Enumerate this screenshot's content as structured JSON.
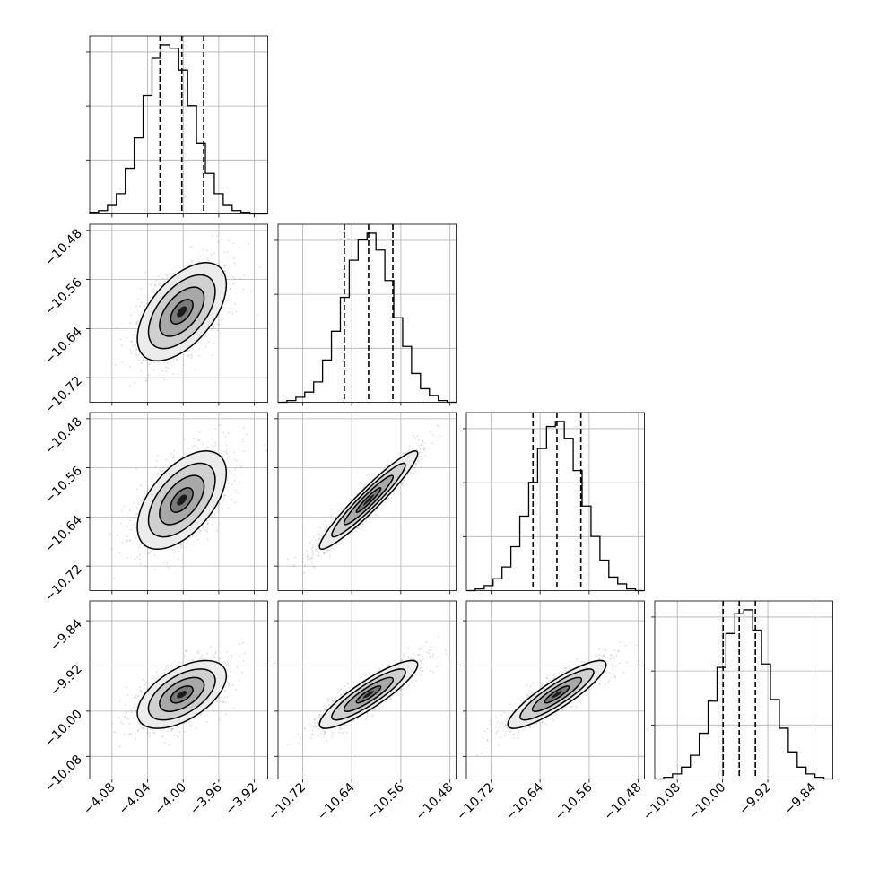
{
  "chart_data": {
    "type": "corner",
    "grid": true,
    "title": "",
    "parameters": [
      {
        "name": "",
        "range": [
          -4.105,
          -3.905
        ],
        "ticks": [
          "−4.08",
          "−4.04",
          "−4.00",
          "−3.96",
          "−3.92"
        ],
        "tick_values": [
          -4.08,
          -4.04,
          -4.0,
          -3.96,
          -3.92
        ],
        "quantiles": [
          -4.026,
          -4.0015,
          -3.977
        ]
      },
      {
        "name": "",
        "range": [
          -10.76,
          -10.47
        ],
        "ticks": [
          "−10.72",
          "−10.64",
          "−10.56",
          "−10.48"
        ],
        "tick_values": [
          -10.72,
          -10.64,
          -10.56,
          -10.48
        ],
        "quantiles": [
          -10.652,
          -10.6125,
          -10.573
        ]
      },
      {
        "name": "",
        "range": [
          -10.76,
          -10.47
        ],
        "ticks": [
          "−10.72",
          "−10.64",
          "−10.56",
          "−10.48"
        ],
        "tick_values": [
          -10.72,
          -10.64,
          -10.56,
          -10.48
        ],
        "quantiles": [
          -10.6515,
          -10.6125,
          -10.5735
        ]
      },
      {
        "name": "",
        "range": [
          -10.12,
          -9.805
        ],
        "ticks": [
          "−10.08",
          "−10.00",
          "−9.92",
          "−9.84"
        ],
        "tick_values": [
          -10.08,
          -10.0,
          -9.92,
          -9.84
        ],
        "quantiles": [
          -9.999,
          -9.9705,
          -9.942
        ]
      }
    ],
    "histograms": [
      {
        "param": 0,
        "counts": [
          1,
          2,
          5,
          12,
          27,
          45,
          70,
          92,
          100,
          98,
          85,
          64,
          42,
          24,
          12,
          5,
          2,
          1,
          0,
          0
        ]
      },
      {
        "param": 1,
        "counts": [
          0,
          1,
          3,
          6,
          12,
          25,
          42,
          62,
          84,
          96,
          100,
          90,
          72,
          50,
          33,
          17,
          8,
          4,
          1,
          0
        ]
      },
      {
        "param": 2,
        "counts": [
          0,
          1,
          3,
          7,
          14,
          26,
          44,
          64,
          84,
          97,
          100,
          90,
          71,
          50,
          32,
          18,
          8,
          4,
          1,
          0
        ]
      },
      {
        "param": 3,
        "counts": [
          0,
          1,
          3,
          7,
          14,
          27,
          46,
          66,
          86,
          98,
          100,
          88,
          68,
          47,
          30,
          16,
          7,
          3,
          1,
          0
        ]
      }
    ],
    "pairs": [
      {
        "x": 0,
        "y": 1,
        "mean": [
          -4.0015,
          -10.6125
        ],
        "sd": [
          0.025,
          0.04
        ],
        "rho": 0.55
      },
      {
        "x": 0,
        "y": 2,
        "mean": [
          -4.0015,
          -10.6125
        ],
        "sd": [
          0.025,
          0.04
        ],
        "rho": 0.55
      },
      {
        "x": 1,
        "y": 2,
        "mean": [
          -10.6125,
          -10.6125
        ],
        "sd": [
          0.04,
          0.04
        ],
        "rho": 0.95
      },
      {
        "x": 0,
        "y": 3,
        "mean": [
          -4.0015,
          -9.9705
        ],
        "sd": [
          0.025,
          0.03
        ],
        "rho": 0.55
      },
      {
        "x": 1,
        "y": 3,
        "mean": [
          -10.6125,
          -9.9705
        ],
        "sd": [
          0.04,
          0.03
        ],
        "rho": 0.88
      },
      {
        "x": 2,
        "y": 3,
        "mean": [
          -10.6125,
          -9.9705
        ],
        "sd": [
          0.04,
          0.03
        ],
        "rho": 0.88
      }
    ],
    "contour_levels_sigma": [
      0.5,
      1.0,
      1.5,
      2.0
    ],
    "colors": {
      "line": "#000000",
      "grid": "#b0b0b0",
      "points": "#808080"
    }
  }
}
